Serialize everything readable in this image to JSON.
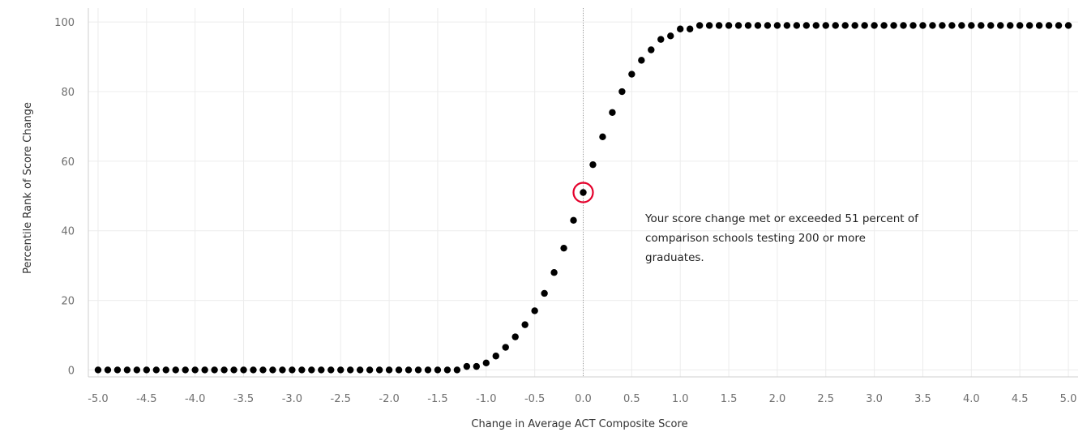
{
  "chart_data": {
    "type": "scatter",
    "xlabel": "Change in Average ACT Composite Score",
    "ylabel": "Percentile Rank of Score Change",
    "xlim": [
      -5.1,
      5.1
    ],
    "ylim": [
      -2,
      104
    ],
    "x_ticks": [
      -5.0,
      -4.5,
      -4.0,
      -3.5,
      -3.0,
      -2.5,
      -2.0,
      -1.5,
      -1.0,
      -0.5,
      0.0,
      0.5,
      1.0,
      1.5,
      2.0,
      2.5,
      3.0,
      3.5,
      4.0,
      4.5,
      5.0
    ],
    "x_tick_labels": [
      "-5.0",
      "-4.5",
      "-4.0",
      "-3.5",
      "-3.0",
      "-2.5",
      "-2.0",
      "-1.5",
      "-1.0",
      "-0.5",
      "0.0",
      "0.5",
      "1.0",
      "1.5",
      "2.0",
      "2.5",
      "3.0",
      "3.5",
      "4.0",
      "4.5",
      "5.0"
    ],
    "y_ticks": [
      0,
      20,
      40,
      60,
      80,
      100
    ],
    "y_tick_labels": [
      "0",
      "20",
      "40",
      "60",
      "80",
      "100"
    ],
    "grid": true,
    "reference_line_x": 0,
    "x": [
      -5.0,
      -4.9,
      -4.8,
      -4.7,
      -4.6,
      -4.5,
      -4.4,
      -4.3,
      -4.2,
      -4.1,
      -4.0,
      -3.9,
      -3.8,
      -3.7,
      -3.6,
      -3.5,
      -3.4,
      -3.3,
      -3.2,
      -3.1,
      -3.0,
      -2.9,
      -2.8,
      -2.7,
      -2.6,
      -2.5,
      -2.4,
      -2.3,
      -2.2,
      -2.1,
      -2.0,
      -1.9,
      -1.8,
      -1.7,
      -1.6,
      -1.5,
      -1.4,
      -1.3,
      -1.2,
      -1.1,
      -1.0,
      -0.9,
      -0.8,
      -0.7,
      -0.6,
      -0.5,
      -0.4,
      -0.3,
      -0.2,
      -0.1,
      0.0,
      0.1,
      0.2,
      0.3,
      0.4,
      0.5,
      0.6,
      0.7,
      0.8,
      0.9,
      1.0,
      1.1,
      1.2,
      1.3,
      1.4,
      1.5,
      1.6,
      1.7,
      1.8,
      1.9,
      2.0,
      2.1,
      2.2,
      2.3,
      2.4,
      2.5,
      2.6,
      2.7,
      2.8,
      2.9,
      3.0,
      3.1,
      3.2,
      3.3,
      3.4,
      3.5,
      3.6,
      3.7,
      3.8,
      3.9,
      4.0,
      4.1,
      4.2,
      4.3,
      4.4,
      4.5,
      4.6,
      4.7,
      4.8,
      4.9,
      5.0
    ],
    "y": [
      0,
      0,
      0,
      0,
      0,
      0,
      0,
      0,
      0,
      0,
      0,
      0,
      0,
      0,
      0,
      0,
      0,
      0,
      0,
      0,
      0,
      0,
      0,
      0,
      0,
      0,
      0,
      0,
      0,
      0,
      0,
      0,
      0,
      0,
      0,
      0,
      0,
      0,
      1,
      1,
      2,
      4,
      6.5,
      9.5,
      13,
      17,
      22,
      28,
      35,
      43,
      51,
      59,
      67,
      74,
      80,
      85,
      89,
      92,
      95,
      96,
      98,
      98,
      99,
      99,
      99,
      99,
      99,
      99,
      99,
      99,
      99,
      99,
      99,
      99,
      99,
      99,
      99,
      99,
      99,
      99,
      99,
      99,
      99,
      99,
      99,
      99,
      99,
      99,
      99,
      99,
      99,
      99,
      99,
      99,
      99,
      99,
      99,
      99,
      99,
      99,
      99
    ],
    "highlight": {
      "x": 0.0,
      "y": 51,
      "ring_color": "#e4002b"
    },
    "annotation": {
      "lines": [
        "Your score change met or exceeded 51 percent of",
        "comparison schools testing 200 or more",
        "graduates."
      ]
    },
    "colors": {
      "dots": "#000000",
      "grid": "#ececec",
      "axis": "#cfcfcf",
      "reference": "#9a9a9a"
    }
  }
}
